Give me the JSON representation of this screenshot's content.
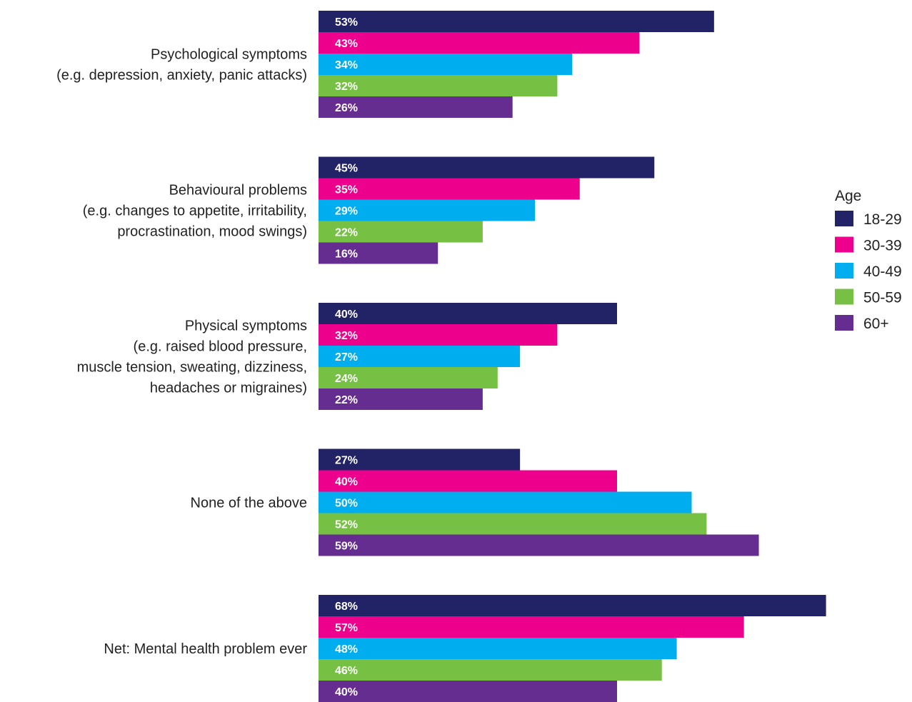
{
  "chart_data": {
    "type": "bar",
    "orientation": "horizontal",
    "categories": [
      [
        "Psychological symptoms",
        "(e.g. depression, anxiety, panic attacks)"
      ],
      [
        "Behavioural problems",
        "(e.g. changes to appetite, irritability,",
        "procrastination, mood swings)"
      ],
      [
        "Physical symptoms",
        "(e.g. raised blood pressure,",
        "muscle tension, sweating, dizziness,",
        "headaches or migraines)"
      ],
      [
        "None of the above"
      ],
      [
        "Net: Mental health problem ever"
      ]
    ],
    "series": [
      {
        "name": "18-29",
        "color": "#222266",
        "values": [
          53,
          45,
          40,
          27,
          68
        ]
      },
      {
        "name": "30-39",
        "color": "#ec008c",
        "values": [
          43,
          35,
          32,
          40,
          57
        ]
      },
      {
        "name": "40-49",
        "color": "#00aeef",
        "values": [
          34,
          29,
          27,
          50,
          48
        ]
      },
      {
        "name": "50-59",
        "color": "#76c043",
        "values": [
          32,
          22,
          24,
          52,
          46
        ]
      },
      {
        "name": "60+",
        "color": "#662d91",
        "values": [
          26,
          16,
          22,
          59,
          40
        ]
      }
    ],
    "value_suffix": "%",
    "xlim": [
      0,
      100
    ],
    "grid": false,
    "legend": {
      "title": "Age",
      "placement": "right"
    }
  }
}
